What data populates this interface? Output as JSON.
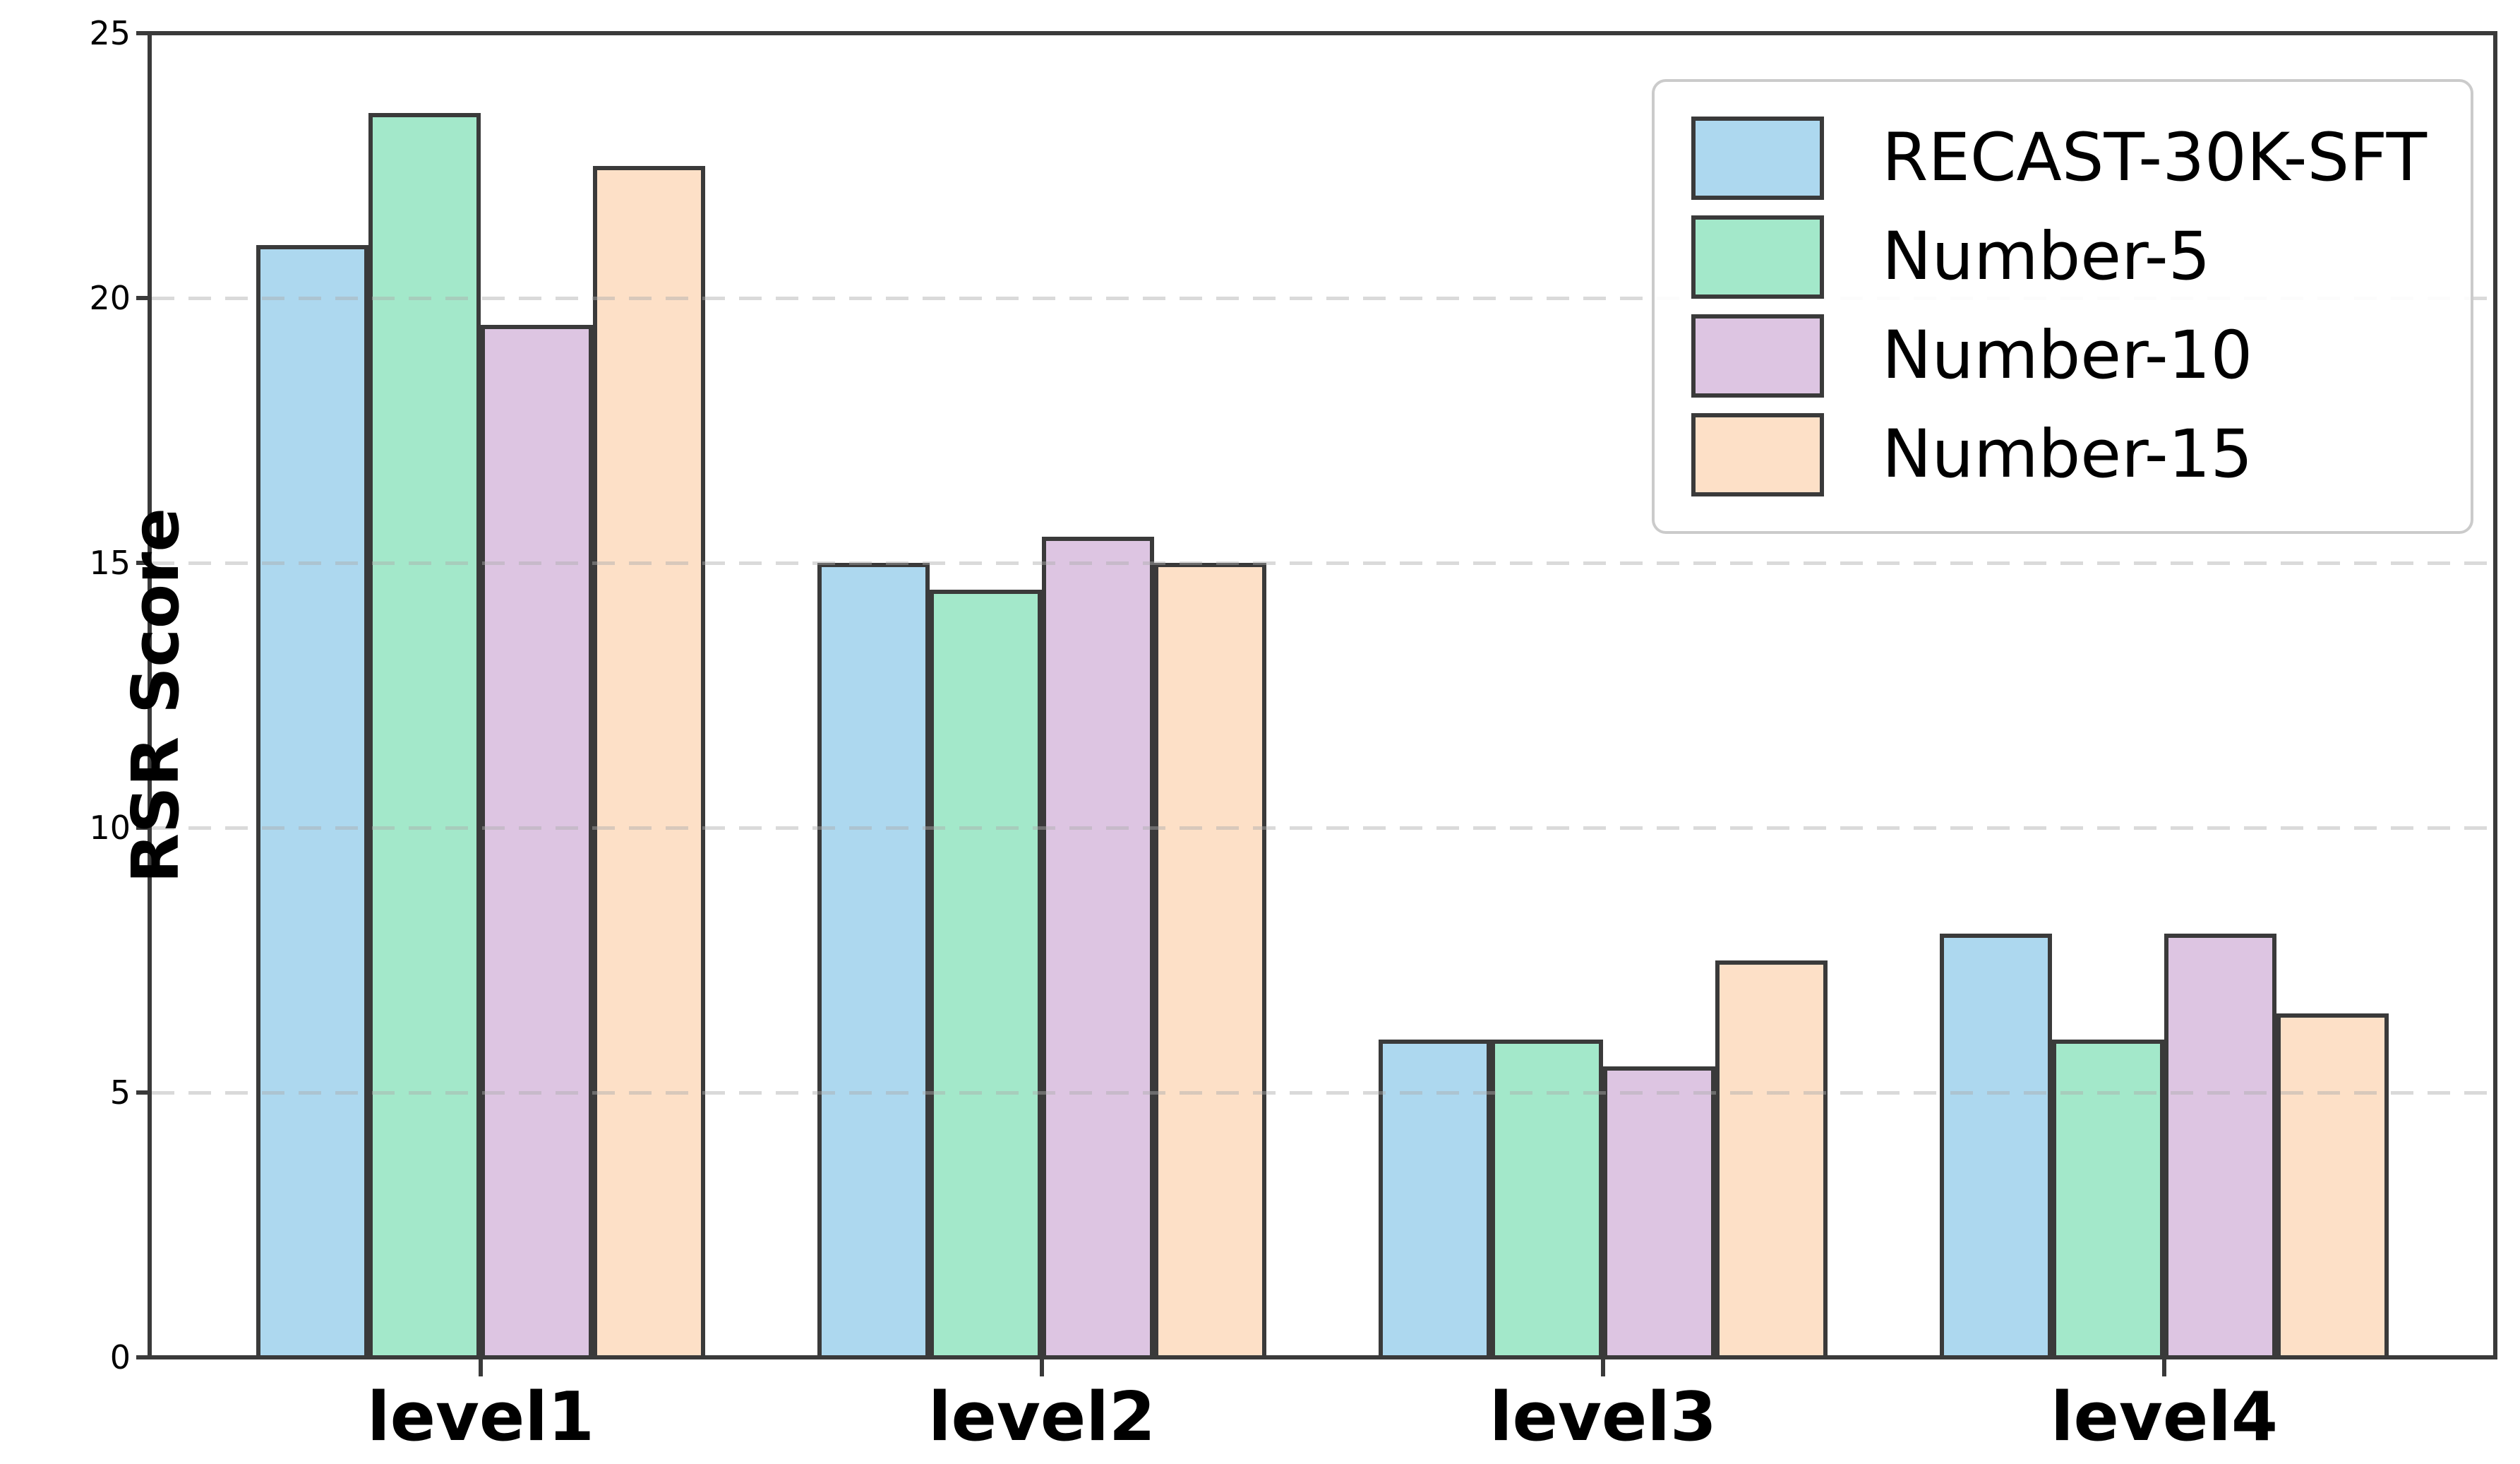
{
  "figure": {
    "ylabel": "RSR Score",
    "background": "#FFFFFF",
    "spine_color": "#3A3A3A",
    "grid_color": "#DCDCDC",
    "bar_edge_color": "#3A3A3A"
  },
  "chart_data": {
    "type": "bar",
    "title": "",
    "xlabel": "",
    "ylabel": "RSR Score",
    "categories": [
      "level1",
      "level2",
      "level3",
      "level4"
    ],
    "series": [
      {
        "name": "RECAST-30K-SFT",
        "color": "#ADD8EF",
        "values": [
          21,
          15,
          6,
          8
        ]
      },
      {
        "name": "Number-5",
        "color": "#A3E8CA",
        "values": [
          23.5,
          14.5,
          6,
          6
        ]
      },
      {
        "name": "Number-10",
        "color": "#DDC5E2",
        "values": [
          19.5,
          15.5,
          5.5,
          8
        ]
      },
      {
        "name": "Number-15",
        "color": "#FDE0C7",
        "values": [
          22.5,
          15,
          7.5,
          6.5
        ]
      }
    ],
    "ylim": [
      0,
      25
    ],
    "yticks": [
      0,
      5,
      10,
      15,
      20,
      25
    ],
    "grid": "horizontal-dashed",
    "legend_position": "upper-right"
  }
}
